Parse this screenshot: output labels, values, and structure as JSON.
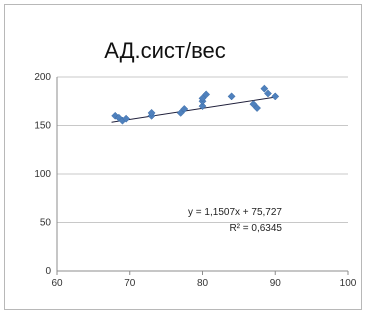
{
  "chart_data": {
    "type": "scatter",
    "title": "АД.сист/вес",
    "xlabel": "",
    "ylabel": "",
    "xlim": [
      60,
      100
    ],
    "ylim": [
      0,
      200
    ],
    "x_ticks": [
      60,
      70,
      80,
      90,
      100
    ],
    "y_ticks": [
      0,
      50,
      100,
      150,
      200
    ],
    "grid": "horizontal",
    "legend": "none",
    "marker_color": "#4f81bd",
    "trendline_color": "#1f1f3a",
    "series": [
      {
        "points": [
          {
            "x": 68,
            "y": 160
          },
          {
            "x": 68.5,
            "y": 158
          },
          {
            "x": 69,
            "y": 155
          },
          {
            "x": 69.5,
            "y": 157
          },
          {
            "x": 73,
            "y": 160
          },
          {
            "x": 73,
            "y": 163
          },
          {
            "x": 77,
            "y": 163
          },
          {
            "x": 77.5,
            "y": 167
          },
          {
            "x": 80,
            "y": 170
          },
          {
            "x": 80,
            "y": 175
          },
          {
            "x": 80,
            "y": 178
          },
          {
            "x": 80.5,
            "y": 182
          },
          {
            "x": 84,
            "y": 180
          },
          {
            "x": 87,
            "y": 172
          },
          {
            "x": 87.5,
            "y": 168
          },
          {
            "x": 88.5,
            "y": 188
          },
          {
            "x": 89,
            "y": 183
          },
          {
            "x": 90,
            "y": 180
          }
        ]
      }
    ],
    "trendline": {
      "slope": 1.1507,
      "intercept": 75.727,
      "x_range": [
        67.5,
        90
      ],
      "equation": "y = 1,1507x + 75,727",
      "r2": "R² = 0,6345"
    }
  }
}
